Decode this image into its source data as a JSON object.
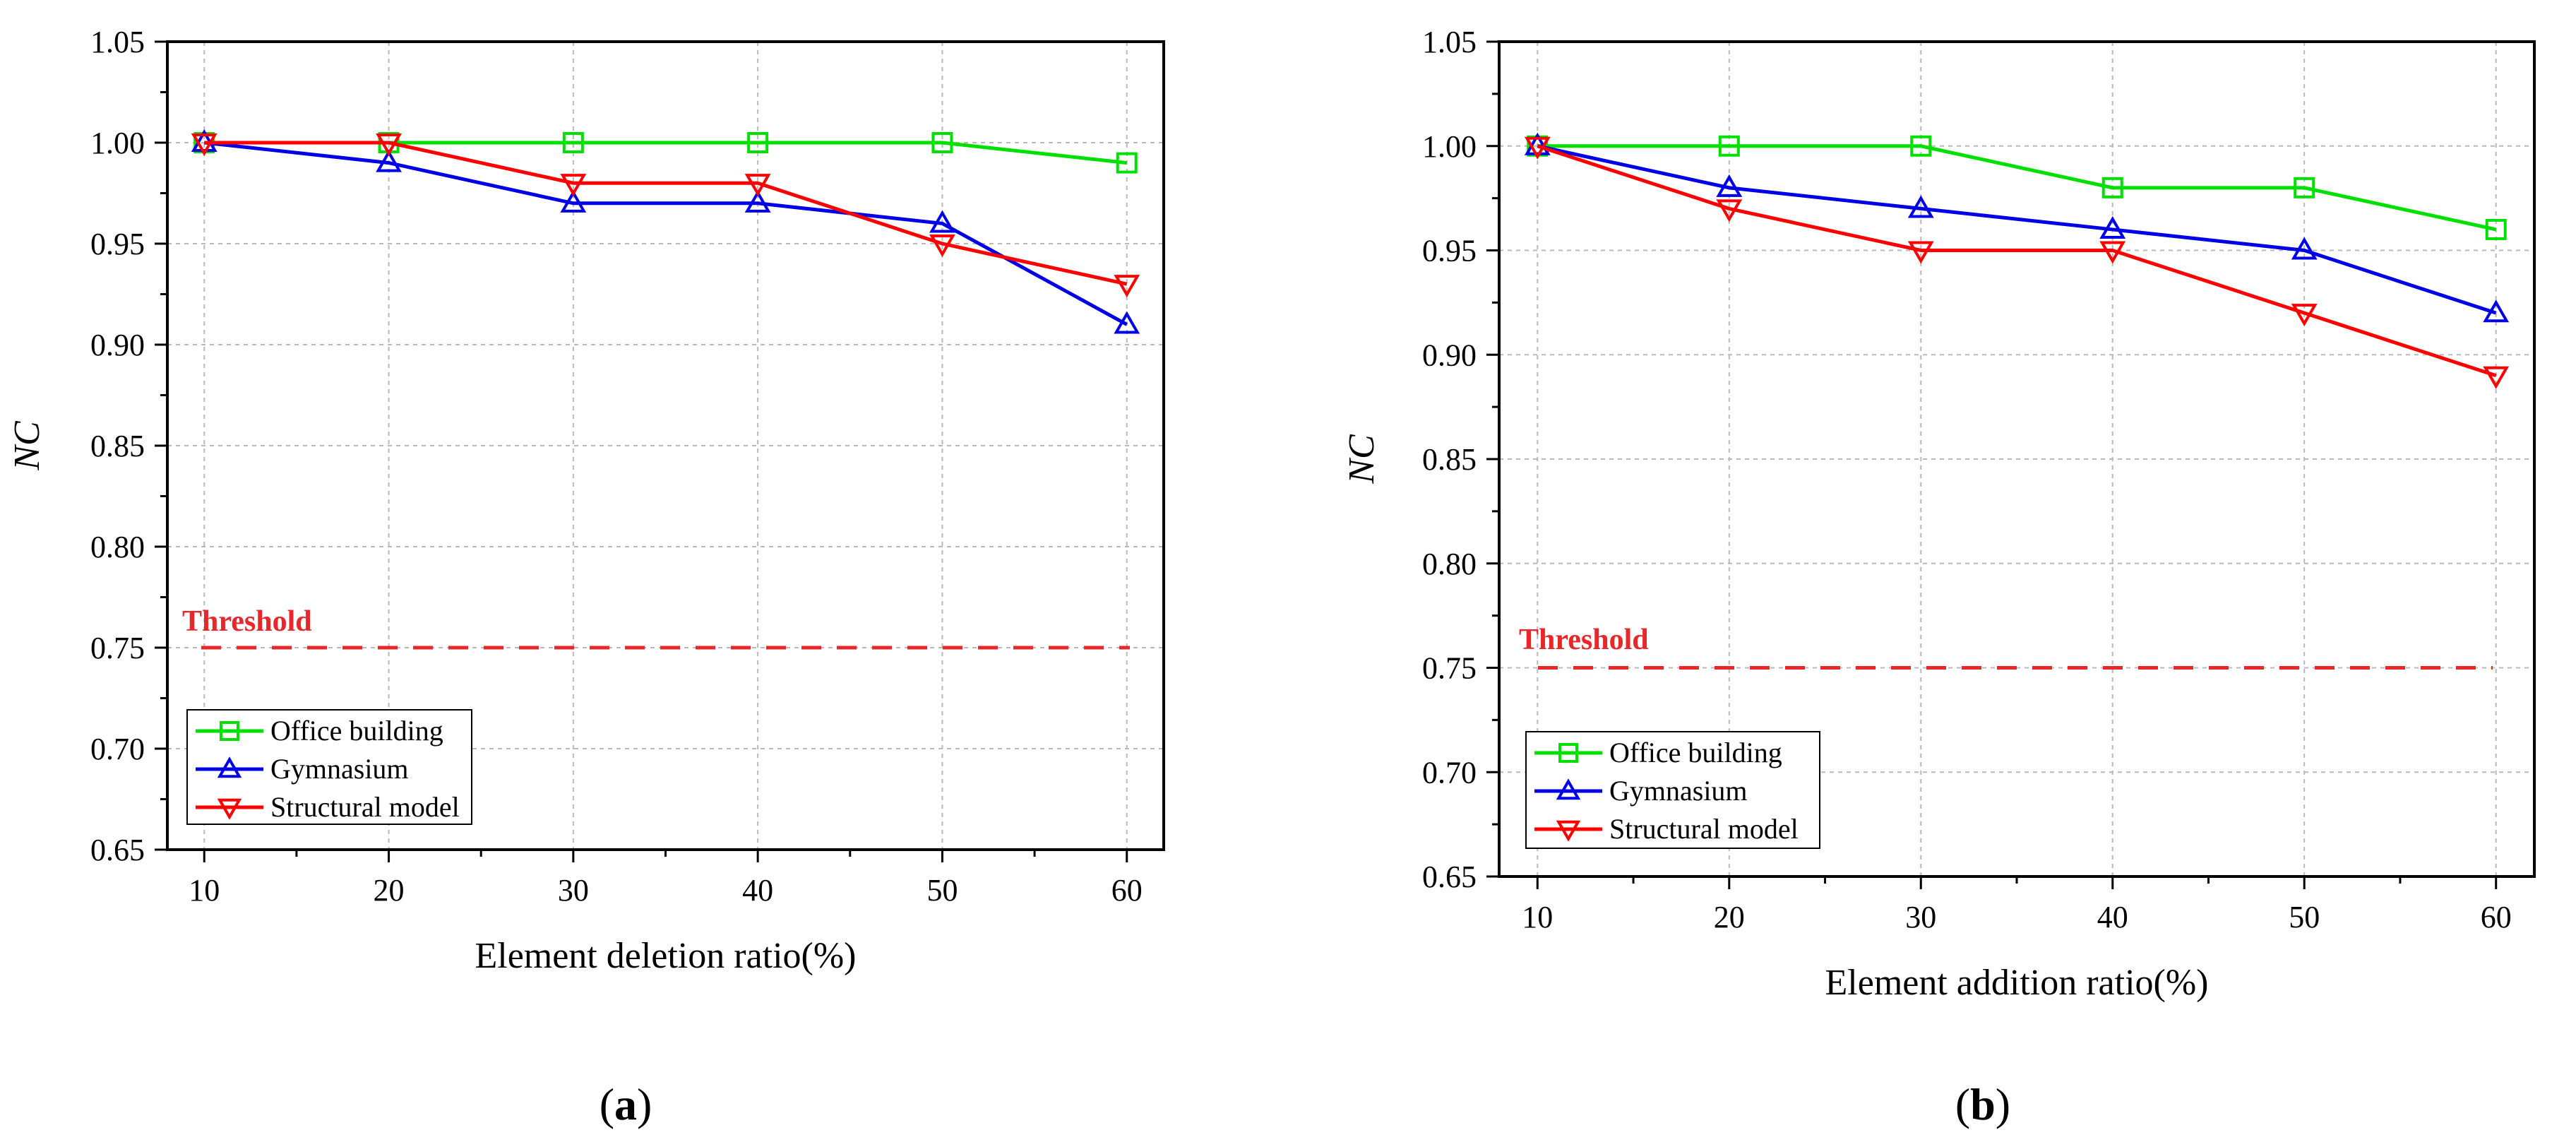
{
  "chart_data": [
    {
      "type": "line",
      "panel_label": "a",
      "xlabel": "Element deletion ratio(%)",
      "ylabel": "NC",
      "x": [
        10,
        20,
        30,
        40,
        50,
        60
      ],
      "xlim": [
        8,
        62
      ],
      "ylim": [
        0.65,
        1.05
      ],
      "yticks": [
        "0.65",
        "0.70",
        "0.75",
        "0.80",
        "0.85",
        "0.90",
        "0.95",
        "1.00",
        "1.05"
      ],
      "xticks": [
        "10",
        "20",
        "30",
        "40",
        "50",
        "60"
      ],
      "grid": true,
      "legend_position": "bottom-left",
      "series": [
        {
          "name": "Office building",
          "color": "#00e000",
          "marker": "square",
          "values": [
            1.0,
            1.0,
            1.0,
            1.0,
            1.0,
            0.99
          ]
        },
        {
          "name": "Gymnasium",
          "color": "#0000e6",
          "marker": "triangle-up",
          "values": [
            1.0,
            0.99,
            0.97,
            0.97,
            0.96,
            0.91
          ]
        },
        {
          "name": "Structural model",
          "color": "#ff0000",
          "marker": "triangle-down",
          "values": [
            1.0,
            1.0,
            0.98,
            0.98,
            0.95,
            0.93
          ]
        }
      ],
      "threshold": {
        "label": "Threshold",
        "value": 0.75,
        "color": "#e8272a"
      }
    },
    {
      "type": "line",
      "panel_label": "b",
      "xlabel": "Element addition ratio(%)",
      "ylabel": "NC",
      "x": [
        10,
        20,
        30,
        40,
        50,
        60
      ],
      "xlim": [
        8,
        62
      ],
      "ylim": [
        0.65,
        1.05
      ],
      "yticks": [
        "0.65",
        "0.70",
        "0.75",
        "0.80",
        "0.85",
        "0.90",
        "0.95",
        "1.00",
        "1.05"
      ],
      "xticks": [
        "10",
        "20",
        "30",
        "40",
        "50",
        "60"
      ],
      "grid": true,
      "legend_position": "bottom-left",
      "series": [
        {
          "name": "Office building",
          "color": "#00e000",
          "marker": "square",
          "values": [
            1.0,
            1.0,
            1.0,
            0.98,
            0.98,
            0.96
          ]
        },
        {
          "name": "Gymnasium",
          "color": "#0000e6",
          "marker": "triangle-up",
          "values": [
            1.0,
            0.98,
            0.97,
            0.96,
            0.95,
            0.92
          ]
        },
        {
          "name": "Structural model",
          "color": "#ff0000",
          "marker": "triangle-down",
          "values": [
            1.0,
            0.97,
            0.95,
            0.95,
            0.92,
            0.89
          ]
        }
      ],
      "threshold": {
        "label": "Threshold",
        "value": 0.75,
        "color": "#e8272a"
      }
    }
  ]
}
